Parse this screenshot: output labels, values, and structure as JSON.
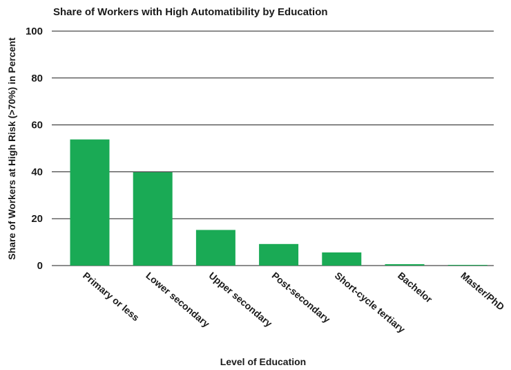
{
  "chart_data": {
    "type": "bar",
    "title": "Share of Workers with High Automatibility by Education",
    "xlabel": "Level of Education",
    "ylabel": "Share of Workers at High Risk (>70%) in Percent",
    "categories": [
      "Primary or less",
      "Lower secondary",
      "Upper secondary",
      "Post-secondary",
      "Short-cycle tertiary",
      "Bachelor",
      "Master/PhD"
    ],
    "values": [
      53.8,
      39.8,
      15.2,
      9.2,
      5.6,
      0.6,
      0.3
    ],
    "ylim": [
      0,
      100
    ],
    "yticks": [
      "0",
      "20",
      "40",
      "60",
      "80",
      "100"
    ],
    "grid": true,
    "bar_color": "#1aaa55"
  }
}
